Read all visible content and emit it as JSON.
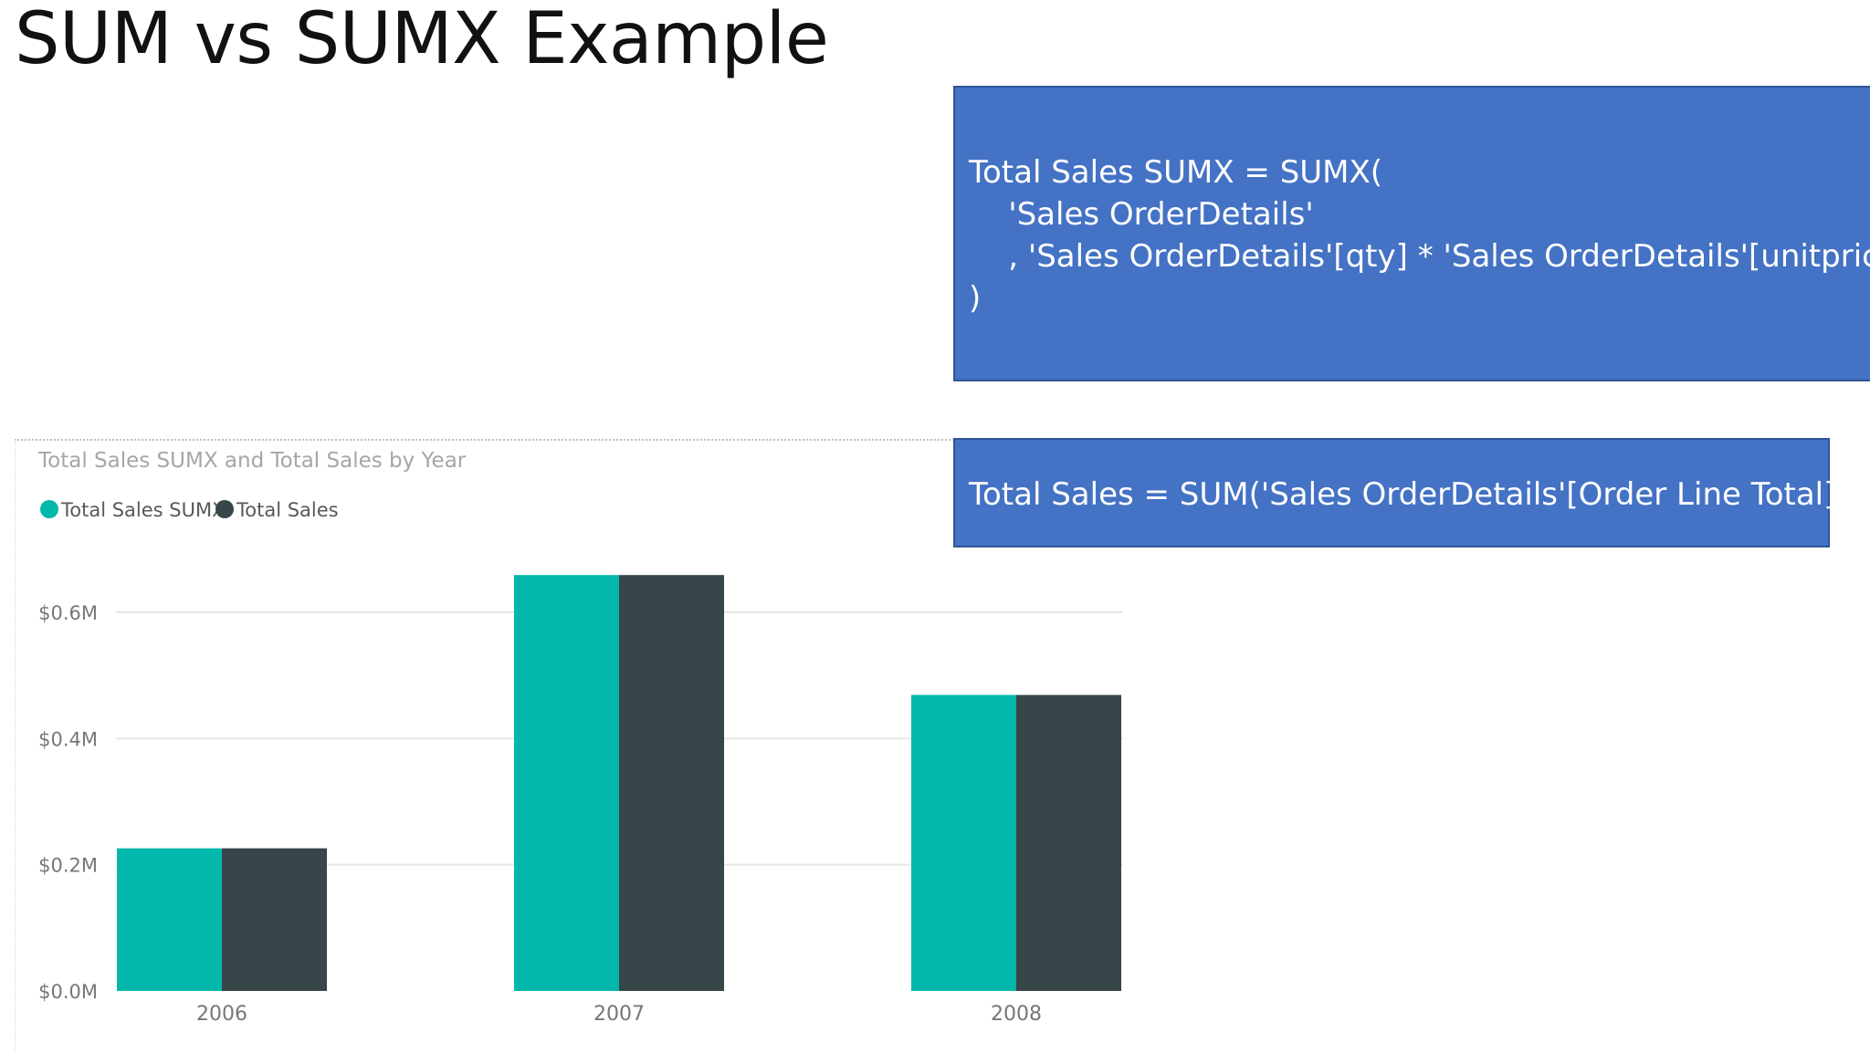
{
  "slide": {
    "title": "SUM vs SUMX Example"
  },
  "code_boxes": {
    "sumx_lines": [
      "Total Sales SUMX = SUMX(",
      "    'Sales OrderDetails'",
      "    , 'Sales OrderDetails'[qty] * 'Sales OrderDetails'[unitprice]",
      ")"
    ],
    "sum_line": "Total Sales = SUM('Sales OrderDetails'[Order Line Total])"
  },
  "chart_data": {
    "type": "bar",
    "title": "Total Sales SUMX and Total Sales by Year",
    "xlabel": "",
    "ylabel": "",
    "categories": [
      "2006",
      "2007",
      "2008"
    ],
    "series": [
      {
        "name": "Total Sales SUMX",
        "color": "#01b8aa",
        "values": [
          0.226,
          0.659,
          0.469
        ]
      },
      {
        "name": "Total Sales",
        "color": "#374649",
        "values": [
          0.226,
          0.659,
          0.469
        ]
      }
    ],
    "ylim": [
      0,
      0.6
    ],
    "yticks": [
      0,
      0.2,
      0.4,
      0.6
    ],
    "ytick_labels": [
      "$0.0M",
      "$0.2M",
      "$0.4M",
      "$0.6M"
    ],
    "grid": true,
    "legend_position": "top-left"
  }
}
